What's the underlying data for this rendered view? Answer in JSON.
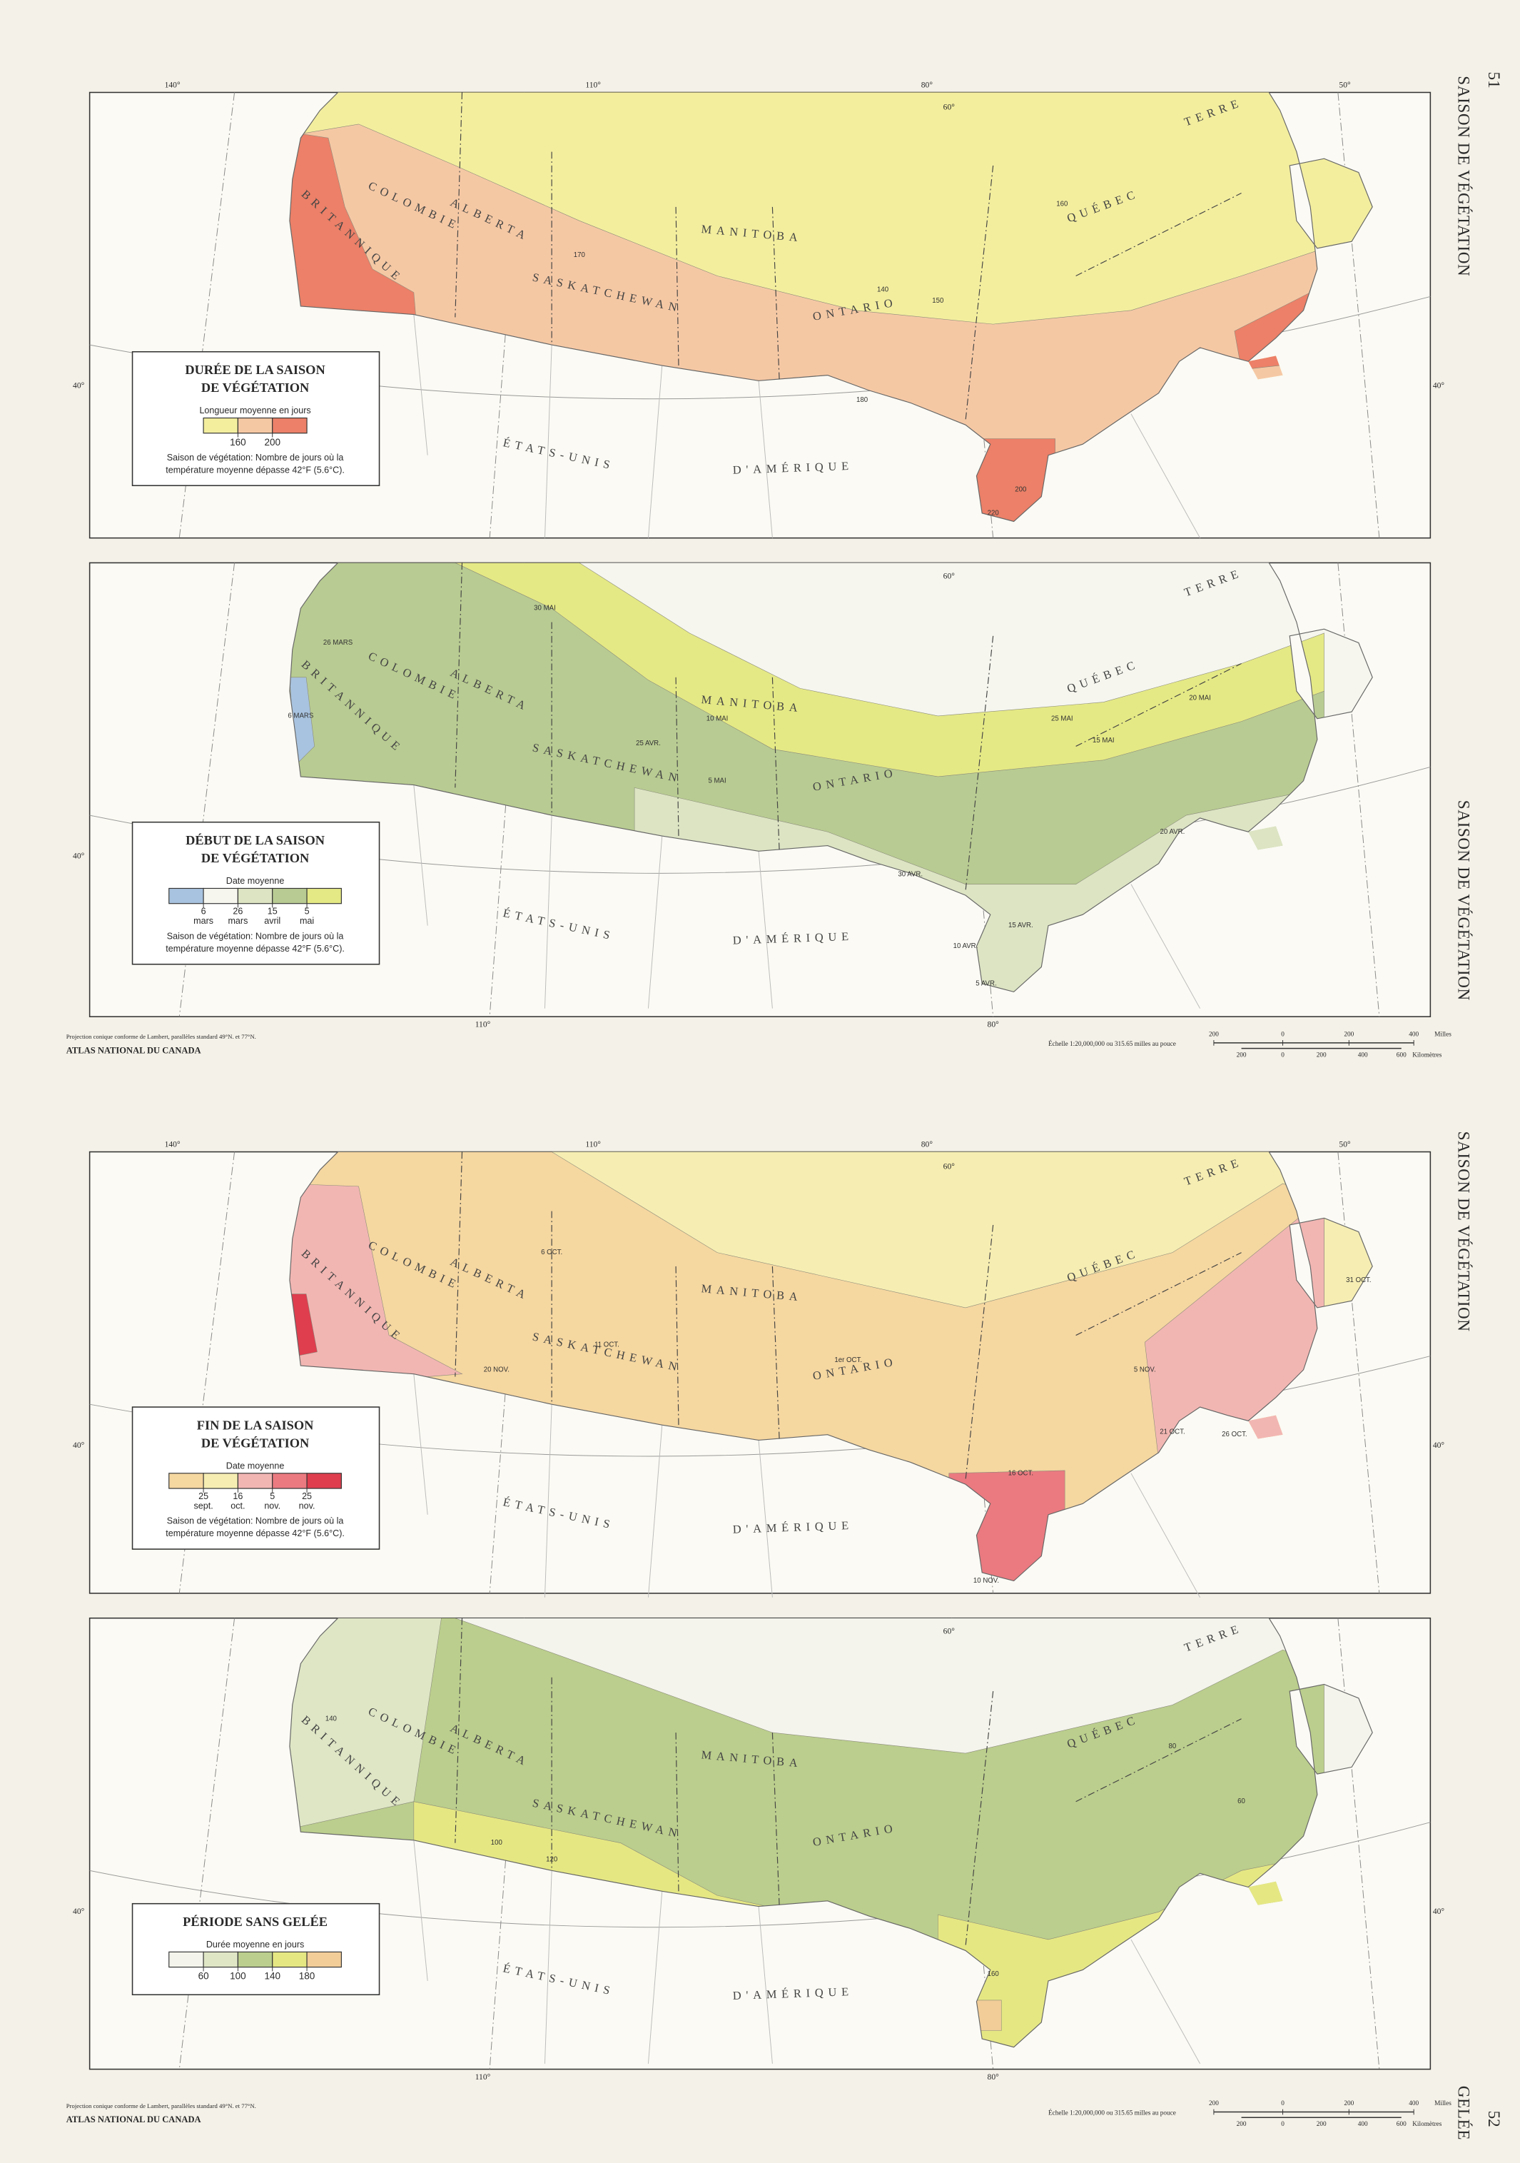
{
  "pages": [
    {
      "number": "51",
      "side_titles": [
        "SAISON DE VÉGÉTATION",
        "SAISON DE VÉGÉTATION"
      ],
      "maps": [
        {
          "longitudes_top": [
            "140°",
            "110°",
            "80°",
            "60°",
            "50°"
          ],
          "longitudes_bottom": [],
          "latitudes": [
            "40°",
            "40°"
          ],
          "places": [
            "COLOMBIE",
            "BRITANNIQUE",
            "ALBERTA",
            "SASKATCHEWAN",
            "MANITOBA",
            "ONTARIO",
            "QUÉBEC",
            "TERRE",
            "ÉTATS-UNIS",
            "D'AMÉRIQUE"
          ],
          "contours": [
            "140",
            "150",
            "160",
            "170",
            "180",
            "200",
            "220"
          ],
          "legend": {
            "title_lines": [
              "DURÉE DE LA SAISON",
              "DE VÉGÉTATION"
            ],
            "caption": "Longueur moyenne en jours",
            "colors": [
              "#f3ee9e",
              "#f5c8a4",
              "#ec8068"
            ],
            "breaks": [
              "160",
              "200"
            ],
            "note_lines": [
              "Saison de végétation: Nombre de jours où la",
              "température moyenne dépasse 42°F (5.6°C)."
            ]
          }
        },
        {
          "longitudes_top": [
            "60°"
          ],
          "longitudes_bottom": [
            "110°",
            "80°"
          ],
          "latitudes": [
            "40°"
          ],
          "places": [
            "COLOMBIE",
            "BRITANNIQUE",
            "ALBERTA",
            "SASKATCHEWAN",
            "MANITOBA",
            "ONTARIO",
            "QUÉBEC",
            "TERRE",
            "ÉTATS-UNIS",
            "D'AMÉRIQUE"
          ],
          "contours": [
            "30 MAI",
            "25 MAI",
            "20 MAI",
            "15 MAI",
            "10 MAI",
            "5 MAI",
            "30 AVR.",
            "25 AVR.",
            "20 AVR.",
            "15 AVR.",
            "10 AVR.",
            "5 AVR.",
            "26 MARS",
            "6 MARS"
          ],
          "legend": {
            "title_lines": [
              "DÉBUT DE LA SAISON",
              "DE VÉGÉTATION"
            ],
            "caption": "Date moyenne",
            "colors": [
              "#a8c3df",
              "#f6f6ef",
              "#dce4c3",
              "#b8cb92",
              "#e5e985"
            ],
            "breaks": [
              [
                "6",
                "mars"
              ],
              [
                "26",
                "mars"
              ],
              [
                "15",
                "avril"
              ],
              [
                "5",
                "mai"
              ]
            ],
            "note_lines": [
              "Saison de végétation: Nombre de jours où la",
              "température moyenne dépasse 42°F (5.6°C)."
            ]
          }
        }
      ],
      "footer": {
        "projection": "Projection conique conforme de Lambert, parallèles standard 49°N. et 77°N.",
        "atlas": "ATLAS NATIONAL DU CANADA",
        "scale": "Échelle 1:20,000,000 ou 315.65 milles au pouce",
        "miles_ticks": [
          "200",
          "0",
          "200",
          "400"
        ],
        "miles_unit": "Milles",
        "km_ticks": [
          "200",
          "0",
          "200",
          "400",
          "600"
        ],
        "km_unit": "Kilomètres"
      }
    },
    {
      "number": "52",
      "side_titles": [
        "SAISON DE VÉGÉTATION",
        "GELÉE"
      ],
      "maps": [
        {
          "longitudes_top": [
            "140°",
            "110°",
            "80°",
            "60°",
            "50°"
          ],
          "longitudes_bottom": [],
          "latitudes": [
            "40°",
            "40°"
          ],
          "places": [
            "COLOMBIE",
            "BRITANNIQUE",
            "ALBERTA",
            "SASKATCHEWAN",
            "MANITOBA",
            "ONTARIO",
            "QUÉBEC",
            "TERRE",
            "ÉTATS-UNIS",
            "D'AMÉRIQUE"
          ],
          "contours": [
            "1er OCT.",
            "6 OCT.",
            "11 OCT.",
            "16 OCT.",
            "21 OCT.",
            "26 OCT.",
            "31 OCT.",
            "5 NOV.",
            "10 NOV.",
            "20 NOV."
          ],
          "legend": {
            "title_lines": [
              "FIN DE LA SAISON",
              "DE VÉGÉTATION"
            ],
            "caption": "Date moyenne",
            "colors": [
              "#f5d7a0",
              "#f6edb2",
              "#f2b6b2",
              "#ea7a80",
              "#de3e4e"
            ],
            "breaks": [
              [
                "25",
                "sept."
              ],
              [
                "16",
                "oct."
              ],
              [
                "5",
                "nov."
              ],
              [
                "25",
                "nov."
              ]
            ],
            "note_lines": [
              "Saison de végétation: Nombre de jours où la",
              "température moyenne dépasse 42°F (5.6°C)."
            ]
          }
        },
        {
          "longitudes_top": [
            "60°"
          ],
          "longitudes_bottom": [
            "110°",
            "80°"
          ],
          "latitudes": [
            "40°",
            "40°"
          ],
          "places": [
            "COLOMBIE",
            "BRITANNIQUE",
            "ALBERTA",
            "SASKATCHEWAN",
            "MANITOBA",
            "ONTARIO",
            "QUÉBEC",
            "TERRE",
            "ÉTATS-UNIS",
            "D'AMÉRIQUE"
          ],
          "contours": [
            "60",
            "80",
            "100",
            "120",
            "140",
            "160"
          ],
          "legend": {
            "title_lines": [
              "PÉRIODE SANS GELÉE"
            ],
            "caption": "Durée moyenne en jours",
            "colors": [
              "#f4f4ec",
              "#dee6c5",
              "#bbce8d",
              "#e5e783",
              "#f2cd98"
            ],
            "breaks": [
              "60",
              "100",
              "140",
              "180"
            ],
            "note_lines": []
          }
        }
      ],
      "footer": {
        "projection": "Projection conique conforme de Lambert, parallèles standard 49°N. et 77°N.",
        "atlas": "ATLAS NATIONAL DU CANADA",
        "scale": "Échelle 1:20,000,000 ou 315.65 milles au pouce",
        "miles_ticks": [
          "200",
          "0",
          "200",
          "400"
        ],
        "miles_unit": "Milles",
        "km_ticks": [
          "200",
          "0",
          "200",
          "400",
          "600"
        ],
        "km_unit": "Kilomètres"
      }
    }
  ]
}
